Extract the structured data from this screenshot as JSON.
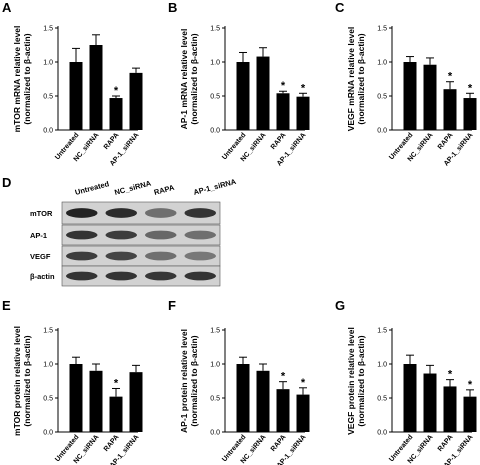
{
  "figure": {
    "panels": [
      {
        "letter": "A",
        "ylabel": [
          "mTOR mRNA relative level",
          "(normalized to β-actin)"
        ]
      },
      {
        "letter": "B",
        "ylabel": [
          "AP-1 mRNA relative level",
          "(normalized to β-actin)"
        ]
      },
      {
        "letter": "C",
        "ylabel": [
          "VEGF mRNA relative level",
          "(normalized to β-actin)"
        ]
      },
      {
        "letter": "E",
        "ylabel": [
          "mTOR protein relative level",
          "(normalized to β-actin)"
        ]
      },
      {
        "letter": "F",
        "ylabel": [
          "AP-1 protein relative level",
          "(normalized to β-actin)"
        ]
      },
      {
        "letter": "G",
        "ylabel": [
          "VEGF protein relative level",
          "(normalized to β-actin)"
        ]
      }
    ],
    "blot": {
      "letter": "D",
      "lanes": [
        "Untreated",
        "NC_siRNA",
        "RAPA",
        "AP-1_siRNA"
      ],
      "rows": [
        "mTOR",
        "AP-1",
        "VEGF",
        "β-actin"
      ],
      "intensity": [
        [
          1.0,
          0.95,
          0.55,
          0.9
        ],
        [
          0.9,
          0.85,
          0.6,
          0.55
        ],
        [
          0.85,
          0.8,
          0.55,
          0.5
        ],
        [
          0.9,
          0.9,
          0.88,
          0.9
        ]
      ]
    },
    "significance_marker": "*"
  },
  "chart_data": [
    {
      "type": "bar",
      "categories": [
        "Untreated",
        "NC_siRNA",
        "RAPA",
        "AP-1_siRNA"
      ],
      "values": [
        1.0,
        1.25,
        0.47,
        0.84
      ],
      "errors": [
        0.2,
        0.15,
        0.03,
        0.07
      ],
      "significant": [
        false,
        false,
        true,
        false
      ],
      "ylim": [
        0,
        1.5
      ],
      "yticks": [
        "0.0",
        "0.5",
        "1.0",
        "1.5"
      ]
    },
    {
      "type": "bar",
      "categories": [
        "Untreated",
        "NC_siRNA",
        "RAPA",
        "AP-1_siRNA"
      ],
      "values": [
        1.0,
        1.08,
        0.54,
        0.49
      ],
      "errors": [
        0.14,
        0.13,
        0.03,
        0.05
      ],
      "significant": [
        false,
        false,
        true,
        true
      ],
      "ylim": [
        0,
        1.5
      ],
      "yticks": [
        "0.0",
        "0.5",
        "1.0",
        "1.5"
      ]
    },
    {
      "type": "bar",
      "categories": [
        "Untreated",
        "NC_siRNA",
        "RAPA",
        "AP-1_siRNA"
      ],
      "values": [
        1.0,
        0.96,
        0.6,
        0.47
      ],
      "errors": [
        0.08,
        0.1,
        0.11,
        0.07
      ],
      "significant": [
        false,
        false,
        true,
        true
      ],
      "ylim": [
        0,
        1.5
      ],
      "yticks": [
        "0.0",
        "0.5",
        "1.0",
        "1.5"
      ]
    },
    {
      "type": "bar",
      "categories": [
        "Untreated",
        "NC_siRNA",
        "RAPA",
        "AP-1_siRNA"
      ],
      "values": [
        1.0,
        0.9,
        0.52,
        0.88
      ],
      "errors": [
        0.1,
        0.1,
        0.12,
        0.1
      ],
      "significant": [
        false,
        false,
        true,
        false
      ],
      "ylim": [
        0,
        1.5
      ],
      "yticks": [
        "0.0",
        "0.5",
        "1.0",
        "1.5"
      ]
    },
    {
      "type": "bar",
      "categories": [
        "Untreated",
        "NC_siRNA",
        "RAPA",
        "AP-1_siRNA"
      ],
      "values": [
        1.0,
        0.9,
        0.63,
        0.55
      ],
      "errors": [
        0.1,
        0.1,
        0.11,
        0.1
      ],
      "significant": [
        false,
        false,
        true,
        true
      ],
      "ylim": [
        0,
        1.5
      ],
      "yticks": [
        "0.0",
        "0.5",
        "1.0",
        "1.5"
      ]
    },
    {
      "type": "bar",
      "categories": [
        "Untreated",
        "NC_siRNA",
        "RAPA",
        "AP-1_siRNA"
      ],
      "values": [
        1.0,
        0.86,
        0.67,
        0.52
      ],
      "errors": [
        0.13,
        0.12,
        0.1,
        0.1
      ],
      "significant": [
        false,
        false,
        true,
        true
      ],
      "ylim": [
        0,
        1.5
      ],
      "yticks": [
        "0.0",
        "0.5",
        "1.0",
        "1.5"
      ]
    }
  ]
}
